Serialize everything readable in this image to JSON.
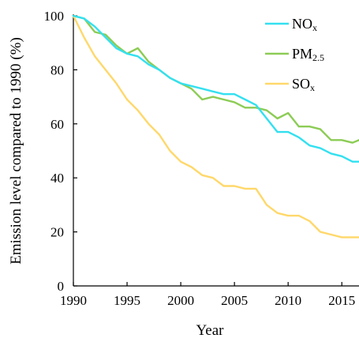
{
  "chart_data": {
    "type": "line",
    "title": "",
    "xlabel": "Year",
    "ylabel": "Emission level compared to 1990 (%)",
    "xlim": [
      1990,
      2016.6
    ],
    "ylim": [
      0,
      100
    ],
    "xticks": [
      1990,
      1995,
      2000,
      2005,
      2010,
      2015
    ],
    "yticks": [
      0,
      20,
      40,
      60,
      80,
      100
    ],
    "grid": false,
    "legend_position": "top-right",
    "x": [
      1990,
      1991,
      1992,
      1993,
      1994,
      1995,
      1996,
      1997,
      1998,
      1999,
      2000,
      2001,
      2002,
      2003,
      2004,
      2005,
      2006,
      2007,
      2008,
      2009,
      2010,
      2011,
      2012,
      2013,
      2014,
      2015,
      2016,
      2016.6
    ],
    "series": [
      {
        "name": "NOx",
        "name_main": "NO",
        "name_sub": "x",
        "color": "#33e0f0",
        "values": [
          100,
          99,
          96,
          92,
          88,
          86,
          85,
          82,
          80,
          77,
          75,
          74,
          73,
          72,
          71,
          71,
          69,
          67,
          62,
          57,
          57,
          55,
          52,
          51,
          49,
          48,
          46,
          46
        ]
      },
      {
        "name": "PM2.5",
        "name_main": "PM",
        "name_sub": "2.5",
        "color": "#8ccc55",
        "values": [
          100,
          99,
          94,
          93,
          89,
          86,
          88,
          83,
          80,
          77,
          75,
          73,
          69,
          70,
          69,
          68,
          66,
          66,
          65,
          62,
          64,
          59,
          59,
          58,
          54,
          54,
          53,
          54
        ]
      },
      {
        "name": "SOx",
        "name_main": "SO",
        "name_sub": "x",
        "color": "#ffd86b",
        "values": [
          100,
          92,
          85,
          80,
          75,
          69,
          65,
          60,
          56,
          50,
          46,
          44,
          41,
          40,
          37,
          37,
          36,
          36,
          30,
          27,
          26,
          26,
          24,
          20,
          19,
          18,
          18,
          18
        ]
      }
    ]
  }
}
